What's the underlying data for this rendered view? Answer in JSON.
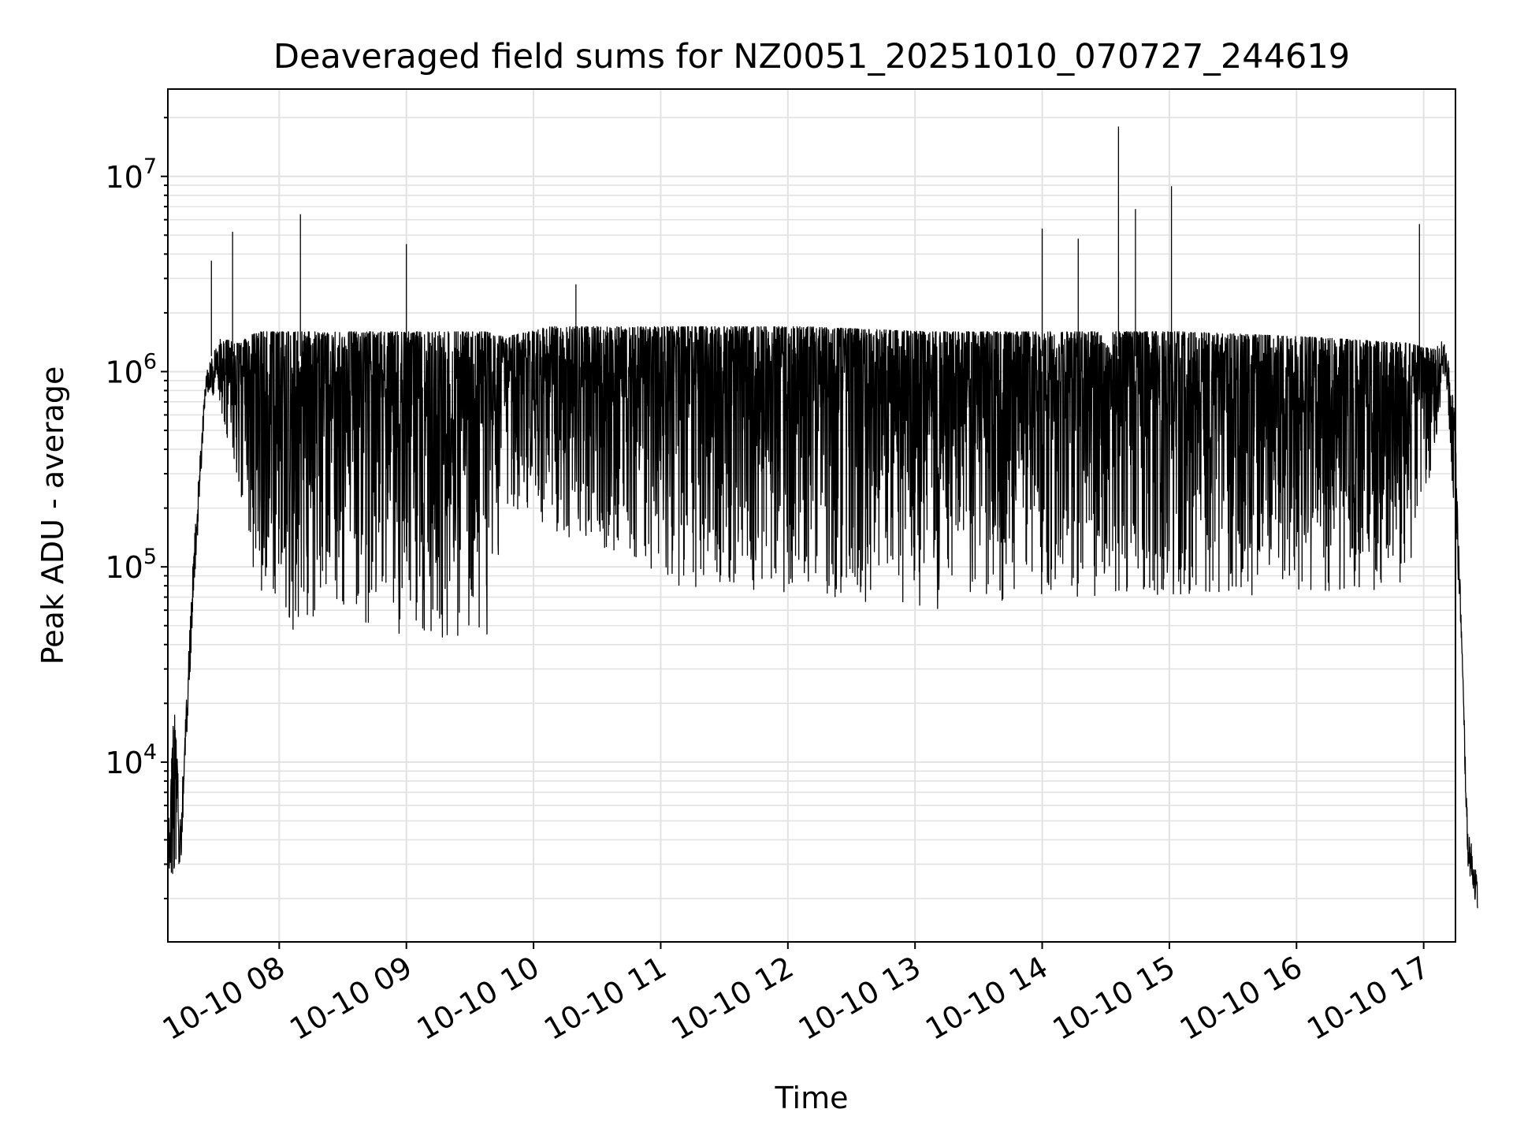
{
  "chart_data": {
    "type": "line",
    "title": "Deaveraged field sums for NZ0051_20251010_070727_244619",
    "xlabel": "Time",
    "ylabel": "Peak ADU - average",
    "yscale": "log",
    "ylim": [
      1200,
      28000000
    ],
    "xlim": [
      "2025-10-10 07:07:27",
      "2025-10-10 17:15:00"
    ],
    "x_ticks": [
      {
        "value": "2025-10-10 08:00",
        "label": "10-10 08"
      },
      {
        "value": "2025-10-10 09:00",
        "label": "10-10 09"
      },
      {
        "value": "2025-10-10 10:00",
        "label": "10-10 10"
      },
      {
        "value": "2025-10-10 11:00",
        "label": "10-10 11"
      },
      {
        "value": "2025-10-10 12:00",
        "label": "10-10 12"
      },
      {
        "value": "2025-10-10 13:00",
        "label": "10-10 13"
      },
      {
        "value": "2025-10-10 14:00",
        "label": "10-10 14"
      },
      {
        "value": "2025-10-10 15:00",
        "label": "10-10 15"
      },
      {
        "value": "2025-10-10 16:00",
        "label": "10-10 16"
      },
      {
        "value": "2025-10-10 17:00",
        "label": "10-10 17"
      }
    ],
    "y_ticks": [
      {
        "value": 10000,
        "base": "10",
        "exp": "4"
      },
      {
        "value": 100000,
        "base": "10",
        "exp": "5"
      },
      {
        "value": 1000000,
        "base": "10",
        "exp": "6"
      },
      {
        "value": 10000000,
        "base": "10",
        "exp": "7"
      }
    ],
    "grid": true,
    "line_color": "#000000",
    "series": [
      {
        "name": "peak_adu_minus_average",
        "sampling": "dense time series (~5000 samples); values approximated from envelope",
        "envelope": [
          {
            "hours": 0.0,
            "low": 2800,
            "high": 4000
          },
          {
            "hours": 0.05,
            "low": 2500,
            "high": 20000
          },
          {
            "hours": 0.1,
            "low": 2800,
            "high": 5000
          },
          {
            "hours": 0.2,
            "low": 60000,
            "high": 120000
          },
          {
            "hours": 0.3,
            "low": 800000,
            "high": 1000000
          },
          {
            "hours": 0.4,
            "low": 700000,
            "high": 1500000
          },
          {
            "hours": 0.55,
            "low": 250000,
            "high": 1400000
          },
          {
            "hours": 0.7,
            "low": 80000,
            "high": 1600000
          },
          {
            "hours": 1.0,
            "low": 45000,
            "high": 1600000
          },
          {
            "hours": 1.5,
            "low": 45000,
            "high": 1600000
          },
          {
            "hours": 2.0,
            "low": 45000,
            "high": 1600000
          },
          {
            "hours": 2.5,
            "low": 40000,
            "high": 1600000
          },
          {
            "hours": 2.65,
            "low": 200000,
            "high": 1500000
          },
          {
            "hours": 3.0,
            "low": 150000,
            "high": 1700000
          },
          {
            "hours": 4.0,
            "low": 80000,
            "high": 1700000
          },
          {
            "hours": 5.0,
            "low": 70000,
            "high": 1700000
          },
          {
            "hours": 6.0,
            "low": 60000,
            "high": 1600000
          },
          {
            "hours": 7.0,
            "low": 70000,
            "high": 1600000
          },
          {
            "hours": 8.0,
            "low": 70000,
            "high": 1600000
          },
          {
            "hours": 9.0,
            "low": 70000,
            "high": 1500000
          },
          {
            "hours": 9.75,
            "low": 80000,
            "high": 1400000
          },
          {
            "hours": 9.95,
            "low": 350000,
            "high": 1300000
          },
          {
            "hours": 10.05,
            "low": 1000000,
            "high": 1500000
          },
          {
            "hours": 10.12,
            "low": 160000,
            "high": 600000
          },
          {
            "hours": 10.17,
            "low": 45000,
            "high": 60000
          },
          {
            "hours": 10.22,
            "low": 3000,
            "high": 5000
          },
          {
            "hours": 10.3,
            "low": 1700,
            "high": 2500
          }
        ],
        "spikes": [
          {
            "time": "2025-10-10 07:28",
            "value": 3700000
          },
          {
            "time": "2025-10-10 07:38",
            "value": 5200000
          },
          {
            "time": "2025-10-10 08:10",
            "value": 6400000
          },
          {
            "time": "2025-10-10 09:00",
            "value": 4500000
          },
          {
            "time": "2025-10-10 10:20",
            "value": 2800000
          },
          {
            "time": "2025-10-10 14:00",
            "value": 5400000
          },
          {
            "time": "2025-10-10 14:17",
            "value": 4800000
          },
          {
            "time": "2025-10-10 14:36",
            "value": 18000000
          },
          {
            "time": "2025-10-10 14:44",
            "value": 6800000
          },
          {
            "time": "2025-10-10 15:01",
            "value": 8900000
          },
          {
            "time": "2025-10-10 16:58",
            "value": 5700000
          }
        ]
      }
    ]
  }
}
